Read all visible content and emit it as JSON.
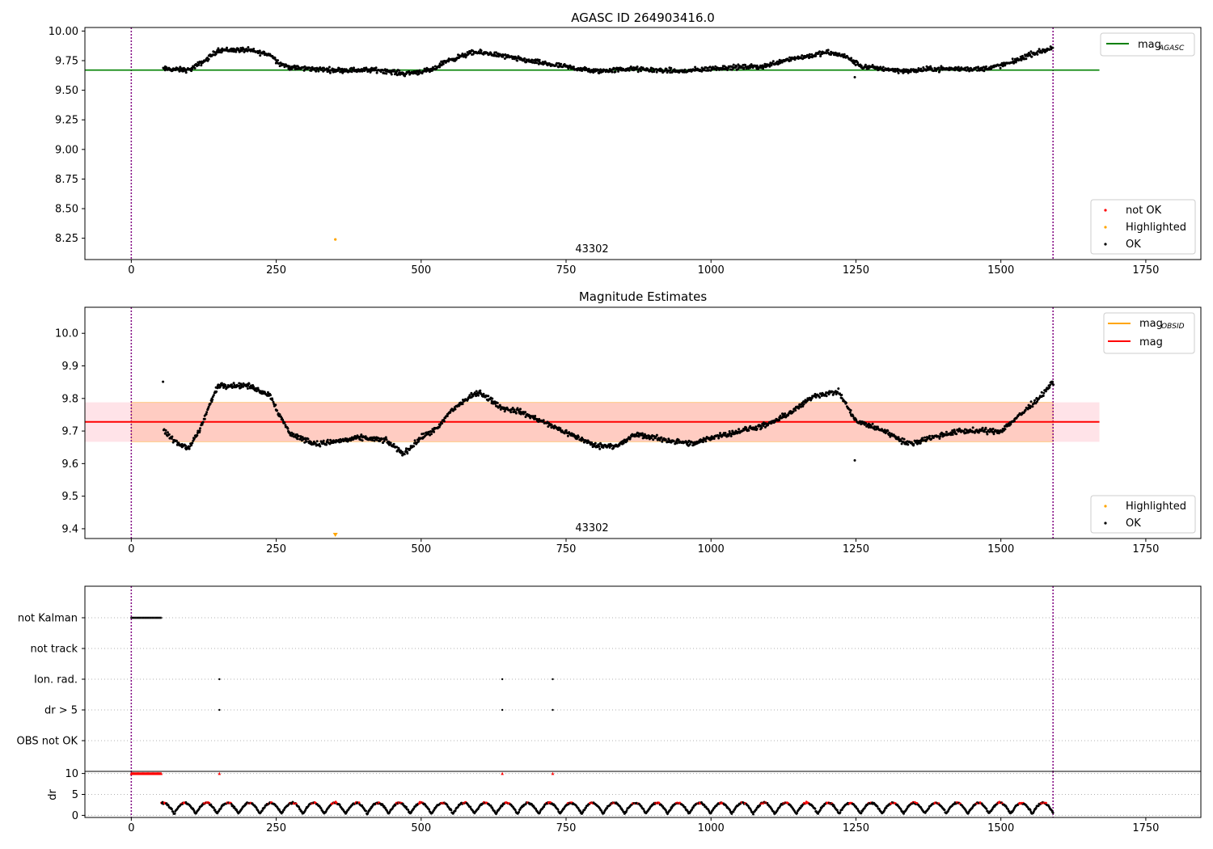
{
  "chart_data": [
    {
      "type": "scatter",
      "title": "AGASC ID 264903416.0",
      "xlim": [
        -80,
        1845
      ],
      "ylim": [
        8.07,
        10.03
      ],
      "xticks": [
        0,
        250,
        500,
        750,
        1000,
        1250,
        1500,
        1750
      ],
      "yticks": [
        8.25,
        8.5,
        8.75,
        9.0,
        9.25,
        9.5,
        9.75,
        10.0
      ],
      "ytick_labels": [
        "8.25",
        "8.50",
        "8.75",
        "9.00",
        "9.25",
        "9.50",
        "9.75",
        "10.00"
      ],
      "vlines": [
        0,
        1590
      ],
      "hline": {
        "y": 9.67,
        "x": [
          -80,
          1670
        ],
        "color": "#008000",
        "label": "mag",
        "label_sub": "AGASC"
      },
      "annotation": {
        "text": "43302",
        "x": 795,
        "y": 8.17
      },
      "series": [
        {
          "name": "not OK",
          "color": "#ff0000",
          "points": []
        },
        {
          "name": "Highlighted",
          "color": "#ffa500",
          "points": [
            [
              352,
              8.24
            ]
          ]
        },
        {
          "name": "OK",
          "color": "#000000",
          "trend": [
            [
              55,
              9.68
            ],
            [
              100,
              9.67
            ],
            [
              130,
              9.76
            ],
            [
              150,
              9.84
            ],
            [
              200,
              9.84
            ],
            [
              240,
              9.8
            ],
            [
              255,
              9.73
            ],
            [
              275,
              9.69
            ],
            [
              350,
              9.67
            ],
            [
              430,
              9.67
            ],
            [
              470,
              9.64
            ],
            [
              520,
              9.67
            ],
            [
              540,
              9.74
            ],
            [
              590,
              9.82
            ],
            [
              620,
              9.81
            ],
            [
              660,
              9.77
            ],
            [
              720,
              9.72
            ],
            [
              800,
              9.66
            ],
            [
              860,
              9.68
            ],
            [
              950,
              9.66
            ],
            [
              1020,
              9.69
            ],
            [
              1090,
              9.7
            ],
            [
              1130,
              9.76
            ],
            [
              1170,
              9.79
            ],
            [
              1200,
              9.82
            ],
            [
              1230,
              9.79
            ],
            [
              1260,
              9.7
            ],
            [
              1340,
              9.66
            ],
            [
              1380,
              9.68
            ],
            [
              1470,
              9.68
            ],
            [
              1510,
              9.72
            ],
            [
              1550,
              9.8
            ],
            [
              1590,
              9.86
            ]
          ],
          "spread": 0.03,
          "count": 1530,
          "outliers": [
            [
              1248,
              9.61
            ]
          ]
        }
      ],
      "legends": [
        {
          "position": "top-right",
          "entries": [
            {
              "label": "mag",
              "sub": "AGASC",
              "color": "#008000",
              "kind": "line"
            }
          ]
        },
        {
          "position": "bottom-right",
          "entries": [
            {
              "label": "not OK",
              "color": "#ff0000",
              "kind": "dot"
            },
            {
              "label": "Highlighted",
              "color": "#ffa500",
              "kind": "dot"
            },
            {
              "label": "OK",
              "color": "#000000",
              "kind": "dot"
            }
          ]
        }
      ]
    },
    {
      "type": "scatter",
      "title": "Magnitude Estimates",
      "xlim": [
        -80,
        1845
      ],
      "ylim": [
        9.37,
        10.08
      ],
      "xticks": [
        0,
        250,
        500,
        750,
        1000,
        1250,
        1500,
        1750
      ],
      "yticks": [
        9.4,
        9.5,
        9.6,
        9.7,
        9.8,
        9.9,
        10.0
      ],
      "ytick_labels": [
        "9.4",
        "9.5",
        "9.6",
        "9.7",
        "9.8",
        "9.9",
        "10.0"
      ],
      "vlines": [
        0,
        1590
      ],
      "band": {
        "y": [
          9.667,
          9.788
        ],
        "x": [
          -80,
          1670
        ]
      },
      "hline": {
        "y": 9.728,
        "x": [
          -80,
          1670
        ],
        "color": "#ff0000",
        "label": "mag"
      },
      "annotation": {
        "text": "43302",
        "x": 795,
        "y": 9.39
      },
      "series": [
        {
          "name": "Highlighted",
          "color": "#ffa500",
          "points": [
            [
              352,
              9.38
            ]
          ]
        },
        {
          "name": "OK",
          "color": "#000000",
          "trend": [
            [
              55,
              9.7
            ],
            [
              80,
              9.66
            ],
            [
              100,
              9.65
            ],
            [
              120,
              9.71
            ],
            [
              135,
              9.78
            ],
            [
              150,
              9.84
            ],
            [
              200,
              9.84
            ],
            [
              240,
              9.81
            ],
            [
              255,
              9.75
            ],
            [
              275,
              9.69
            ],
            [
              320,
              9.66
            ],
            [
              400,
              9.68
            ],
            [
              440,
              9.67
            ],
            [
              470,
              9.63
            ],
            [
              500,
              9.68
            ],
            [
              530,
              9.71
            ],
            [
              550,
              9.76
            ],
            [
              580,
              9.8
            ],
            [
              600,
              9.82
            ],
            [
              640,
              9.77
            ],
            [
              670,
              9.76
            ],
            [
              720,
              9.72
            ],
            [
              770,
              9.68
            ],
            [
              800,
              9.655
            ],
            [
              840,
              9.655
            ],
            [
              870,
              9.69
            ],
            [
              930,
              9.67
            ],
            [
              970,
              9.66
            ],
            [
              1000,
              9.68
            ],
            [
              1050,
              9.7
            ],
            [
              1100,
              9.72
            ],
            [
              1140,
              9.76
            ],
            [
              1180,
              9.81
            ],
            [
              1220,
              9.82
            ],
            [
              1250,
              9.73
            ],
            [
              1300,
              9.7
            ],
            [
              1340,
              9.66
            ],
            [
              1380,
              9.68
            ],
            [
              1430,
              9.7
            ],
            [
              1500,
              9.7
            ],
            [
              1540,
              9.76
            ],
            [
              1565,
              9.8
            ],
            [
              1590,
              9.85
            ]
          ],
          "spread": 0.012,
          "count": 1530,
          "outliers": [
            [
              1248,
              9.61
            ]
          ]
        }
      ],
      "legends": [
        {
          "position": "top-right",
          "entries": [
            {
              "label": "mag",
              "sub": "OBSID",
              "color": "#ffa500",
              "kind": "line"
            },
            {
              "label": "mag",
              "color": "#ff0000",
              "kind": "line"
            }
          ]
        },
        {
          "position": "bottom-right",
          "entries": [
            {
              "label": "Highlighted",
              "color": "#ffa500",
              "kind": "dot"
            },
            {
              "label": "OK",
              "color": "#000000",
              "kind": "dot"
            }
          ]
        }
      ]
    },
    {
      "type": "scatter",
      "title": "",
      "xlim": [
        -80,
        1845
      ],
      "categories": [
        "not Kalman",
        "not track",
        "Ion. rad.",
        "dr > 5",
        "OBS not OK"
      ],
      "vlines": [
        0,
        1590
      ],
      "grid": true,
      "series": [
        {
          "name": "not Kalman",
          "color": "#000000",
          "x_range": [
            0,
            52
          ]
        },
        {
          "name": "not track",
          "color": "#000000",
          "x_range": []
        },
        {
          "name": "Ion. rad.",
          "color": "#000000",
          "x": [
            152,
            640,
            727
          ]
        },
        {
          "name": "dr > 5",
          "color": "#000000",
          "x": [
            152,
            640,
            727
          ]
        },
        {
          "name": "OBS not OK",
          "color": "#000000",
          "x": []
        }
      ]
    },
    {
      "type": "scatter",
      "ylabel": "dr",
      "xlim": [
        -80,
        1845
      ],
      "ylim": [
        -0.5,
        10.5
      ],
      "xticks": [
        0,
        250,
        500,
        750,
        1000,
        1250,
        1500,
        1750
      ],
      "yticks": [
        0,
        5,
        10
      ],
      "ytick_labels": [
        "0",
        "5",
        "10"
      ],
      "vlines": [
        0,
        1590
      ],
      "grid": true,
      "series": [
        {
          "name": "dr",
          "color": "#000000",
          "count": 1530,
          "range": [
            0,
            3.5
          ]
        },
        {
          "name": "dr > threshold",
          "color": "#ff0000",
          "saturated": [
            [
              0,
              52
            ],
            [
              152,
              152
            ],
            [
              640,
              640
            ],
            [
              727,
              727
            ]
          ]
        }
      ]
    }
  ],
  "x_tick_labels": [
    "0",
    "250",
    "500",
    "750",
    "1000",
    "1250",
    "1500",
    "1750"
  ]
}
